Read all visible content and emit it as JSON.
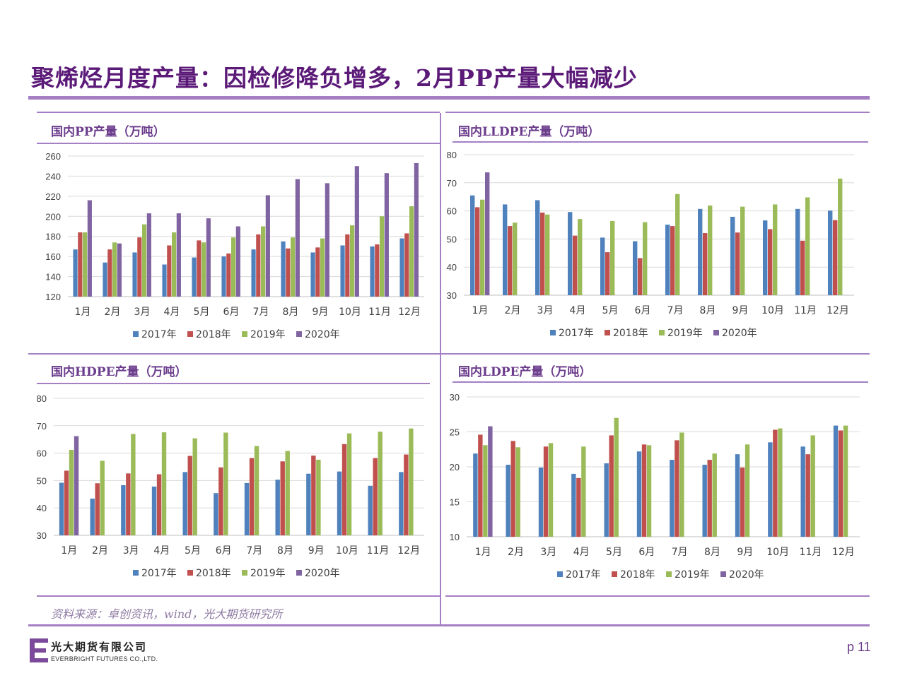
{
  "title": "聚烯烃月度产量：因检修降负增多，2月PP产量大幅减少",
  "source": "资料来源：卓创资讯，wind，光大期货研究所",
  "company": {
    "name_cn": "光大期货有限公司",
    "name_en": "EVERBRIGHT FUTURES CO.,LTD."
  },
  "page_number": "p 11",
  "colors": {
    "2017年": "#4f81bd",
    "2018年": "#c0504d",
    "2019年": "#9bbb59",
    "2020年": "#8064a2",
    "accent": "#a47fc3"
  },
  "chart_data": [
    {
      "id": "pp",
      "type": "bar",
      "title": "国内PP产量（万吨）",
      "categories": [
        "1月",
        "2月",
        "3月",
        "4月",
        "5月",
        "6月",
        "7月",
        "8月",
        "9月",
        "10月",
        "11月",
        "12月"
      ],
      "ylim": [
        120,
        260
      ],
      "yticks": [
        120,
        140,
        160,
        180,
        200,
        220,
        240,
        260
      ],
      "grid": true,
      "legend": "bottom",
      "series": [
        {
          "name": "2017年",
          "values": [
            167,
            154,
            164,
            152,
            159,
            160,
            167,
            175,
            164,
            171,
            170,
            178
          ]
        },
        {
          "name": "2018年",
          "values": [
            184,
            167,
            179,
            171,
            176,
            163,
            182,
            168,
            169,
            182,
            172,
            183
          ]
        },
        {
          "name": "2019年",
          "values": [
            184,
            174,
            192,
            184,
            174,
            179,
            190,
            179,
            178,
            191,
            200,
            210
          ]
        },
        {
          "name": "2020年",
          "values": [
            216,
            173,
            203,
            203,
            198,
            190,
            221,
            237,
            233,
            250,
            243,
            253
          ]
        }
      ]
    },
    {
      "id": "lldpe",
      "type": "bar",
      "title": "国内LLDPE产量（万吨）",
      "categories": [
        "1月",
        "2月",
        "3月",
        "4月",
        "5月",
        "6月",
        "7月",
        "8月",
        "9月",
        "10月",
        "11月",
        "12月"
      ],
      "ylim": [
        30,
        80
      ],
      "yticks": [
        30,
        40,
        50,
        60,
        70,
        80
      ],
      "grid": true,
      "legend": "bottom",
      "series": [
        {
          "name": "2017年",
          "values": [
            65.5,
            62.3,
            63.8,
            59.6,
            50.5,
            49.2,
            55.1,
            60.7,
            57.9,
            56.6,
            60.7,
            60.1
          ]
        },
        {
          "name": "2018年",
          "values": [
            61.3,
            54.6,
            59.4,
            51.2,
            45.3,
            43.2,
            54.6,
            52.1,
            52.3,
            53.5,
            49.4,
            56.7
          ]
        },
        {
          "name": "2019年",
          "values": [
            64.0,
            55.8,
            58.7,
            57.1,
            56.4,
            56.0,
            66.0,
            61.9,
            61.5,
            62.3,
            64.8,
            71.5
          ]
        },
        {
          "name": "2020年",
          "values": [
            73.7,
            null,
            null,
            null,
            null,
            null,
            null,
            null,
            null,
            null,
            null,
            null
          ]
        }
      ]
    },
    {
      "id": "hdpe",
      "type": "bar",
      "title": "国内HDPE产量（万吨）",
      "categories": [
        "1月",
        "2月",
        "3月",
        "4月",
        "5月",
        "6月",
        "7月",
        "8月",
        "9月",
        "10月",
        "11月",
        "12月"
      ],
      "ylim": [
        30,
        80
      ],
      "yticks": [
        30,
        40,
        50,
        60,
        70,
        80
      ],
      "grid": true,
      "legend": "bottom",
      "series": [
        {
          "name": "2017年",
          "values": [
            49.2,
            43.4,
            48.3,
            47.8,
            53.1,
            45.4,
            49.1,
            50.3,
            52.5,
            53.3,
            48.1,
            53.1
          ]
        },
        {
          "name": "2018年",
          "values": [
            53.6,
            49.0,
            52.6,
            52.3,
            59.0,
            54.8,
            58.2,
            57.0,
            59.1,
            63.3,
            58.2,
            59.5
          ]
        },
        {
          "name": "2019年",
          "values": [
            61.2,
            57.2,
            67.0,
            67.6,
            65.4,
            67.5,
            62.6,
            60.8,
            57.6,
            67.2,
            67.8,
            69.0
          ]
        },
        {
          "name": "2020年",
          "values": [
            66.2,
            null,
            null,
            null,
            null,
            null,
            null,
            null,
            null,
            null,
            null,
            null
          ]
        }
      ]
    },
    {
      "id": "ldpe",
      "type": "bar",
      "title": "国内LDPE产量（万吨）",
      "categories": [
        "1月",
        "2月",
        "3月",
        "4月",
        "5月",
        "6月",
        "7月",
        "8月",
        "9月",
        "10月",
        "11月",
        "12月"
      ],
      "ylim": [
        10,
        30
      ],
      "yticks": [
        10,
        15,
        20,
        25,
        30
      ],
      "grid": true,
      "legend": "bottom",
      "series": [
        {
          "name": "2017年",
          "values": [
            21.9,
            20.3,
            19.9,
            19.0,
            20.5,
            22.2,
            21.0,
            20.3,
            21.8,
            23.5,
            22.9,
            25.9
          ]
        },
        {
          "name": "2018年",
          "values": [
            24.6,
            23.7,
            22.9,
            18.4,
            24.5,
            23.2,
            23.8,
            21.0,
            19.9,
            25.3,
            21.8,
            25.2
          ]
        },
        {
          "name": "2019年",
          "values": [
            23.1,
            22.8,
            23.4,
            22.9,
            27.0,
            23.1,
            24.9,
            21.9,
            23.2,
            25.5,
            24.5,
            25.9
          ]
        },
        {
          "name": "2020年",
          "values": [
            25.8,
            null,
            null,
            null,
            null,
            null,
            null,
            null,
            null,
            null,
            null,
            null
          ]
        }
      ]
    }
  ]
}
